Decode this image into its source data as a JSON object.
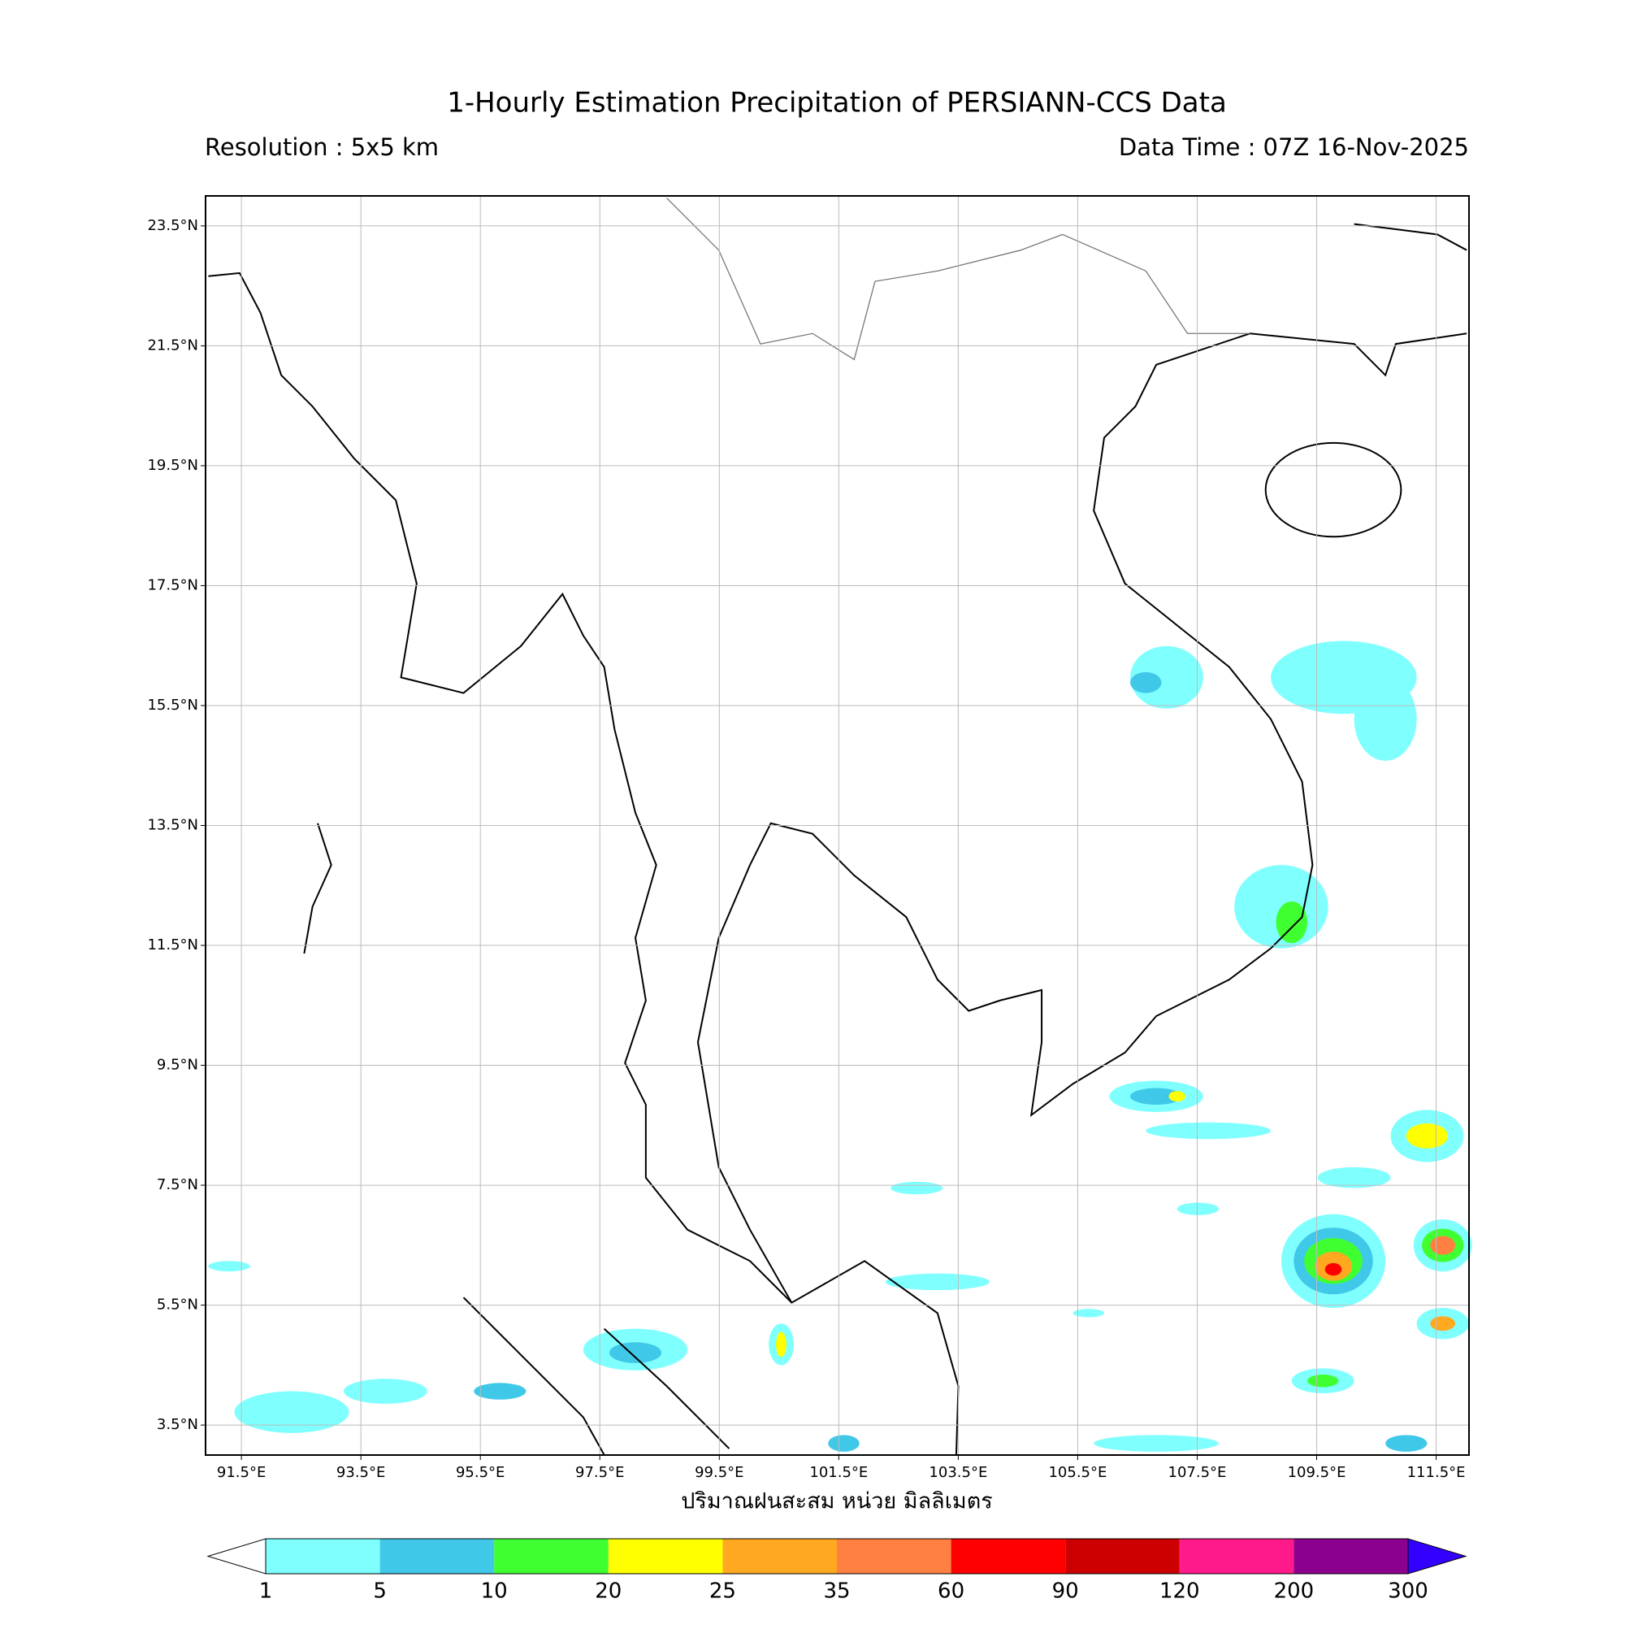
{
  "title": "1-Hourly Estimation Precipitation of PERSIANN-CCS Data",
  "resolution": "Resolution : 5x5 km",
  "data_time": "Data Time : 07Z 16-Nov-2025",
  "map": {
    "xlim": [
      90.9,
      112.05
    ],
    "ylim": [
      3.0,
      24.0
    ],
    "grid": true,
    "xticks": [
      {
        "value": 91.5,
        "label": "91.5°E"
      },
      {
        "value": 93.5,
        "label": "93.5°E"
      },
      {
        "value": 95.5,
        "label": "95.5°E"
      },
      {
        "value": 97.5,
        "label": "97.5°E"
      },
      {
        "value": 99.5,
        "label": "99.5°E"
      },
      {
        "value": 101.5,
        "label": "101.5°E"
      },
      {
        "value": 103.5,
        "label": "103.5°E"
      },
      {
        "value": 105.5,
        "label": "105.5°E"
      },
      {
        "value": 107.5,
        "label": "107.5°E"
      },
      {
        "value": 109.5,
        "label": "109.5°E"
      },
      {
        "value": 111.5,
        "label": "111.5°E"
      }
    ],
    "yticks": [
      {
        "value": 23.5,
        "label": "23.5°N"
      },
      {
        "value": 21.5,
        "label": "21.5°N"
      },
      {
        "value": 19.5,
        "label": "19.5°N"
      },
      {
        "value": 17.5,
        "label": "17.5°N"
      },
      {
        "value": 15.5,
        "label": "15.5°N"
      },
      {
        "value": 13.5,
        "label": "13.5°N"
      },
      {
        "value": 11.5,
        "label": "11.5°N"
      },
      {
        "value": 9.5,
        "label": "9.5°N"
      },
      {
        "value": 7.5,
        "label": "7.5°N"
      },
      {
        "value": 5.5,
        "label": "5.5°N"
      },
      {
        "value": 3.5,
        "label": "3.5°N"
      }
    ]
  },
  "colorbar": {
    "label": "ปริมาณฝนสะสม หน่วย มิลลิเมตร",
    "levels": [
      1,
      5,
      10,
      20,
      25,
      35,
      60,
      90,
      120,
      200,
      300
    ],
    "colors": [
      "#80ffff",
      "#40c8e8",
      "#40ff30",
      "#ffff00",
      "#ffa820",
      "#ff8040",
      "#ff0000",
      "#cc0000",
      "#ff1a8c",
      "#8c0090"
    ],
    "under_color": "#ffffff",
    "over_color": "#3300ff"
  }
}
